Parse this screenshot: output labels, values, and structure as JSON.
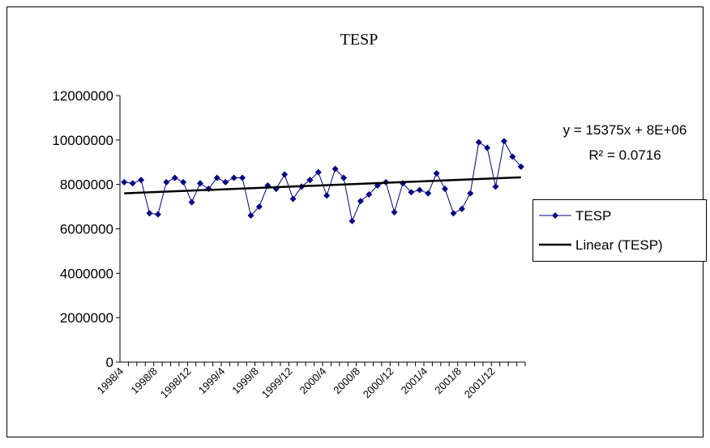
{
  "chart_data": {
    "type": "line",
    "title": "TESP",
    "categories": [
      "1998/4",
      null,
      null,
      null,
      "1998/8",
      null,
      null,
      null,
      "1998/12",
      null,
      null,
      null,
      "1999/4",
      null,
      null,
      null,
      "1999/8",
      null,
      null,
      null,
      "1999/12",
      null,
      null,
      null,
      "2000/4",
      null,
      null,
      null,
      "2000/8",
      null,
      null,
      null,
      "2000/12",
      null,
      null,
      null,
      "2001/4",
      null,
      null,
      null,
      "2001/8",
      null,
      null,
      null,
      "2001/12",
      null,
      null,
      null
    ],
    "series": [
      {
        "name": "TESP",
        "color": "#000080",
        "values": [
          8100000,
          8050000,
          8200000,
          6700000,
          6650000,
          8100000,
          8300000,
          8100000,
          7200000,
          8050000,
          7800000,
          8300000,
          8100000,
          8300000,
          8300000,
          6600000,
          7000000,
          7950000,
          7800000,
          8450000,
          7350000,
          7900000,
          8200000,
          8550000,
          7500000,
          8700000,
          8300000,
          6350000,
          7250000,
          7550000,
          7950000,
          8100000,
          6750000,
          8050000,
          7650000,
          7750000,
          7600000,
          8500000,
          7800000,
          6700000,
          6900000,
          7600000,
          9900000,
          9650000,
          7900000,
          9950000,
          9250000,
          8800000
        ]
      }
    ],
    "trendline": {
      "name": "Linear (TESP)",
      "color": "#000000",
      "start": 7600000,
      "end": 8320000,
      "equation": "y = 15375x + 8E+06",
      "r_squared": "R² = 0.0716"
    },
    "ylim": [
      0,
      12000000
    ],
    "yticks": [
      0,
      2000000,
      4000000,
      6000000,
      8000000,
      10000000,
      12000000
    ],
    "grid": false,
    "legend": "right"
  }
}
